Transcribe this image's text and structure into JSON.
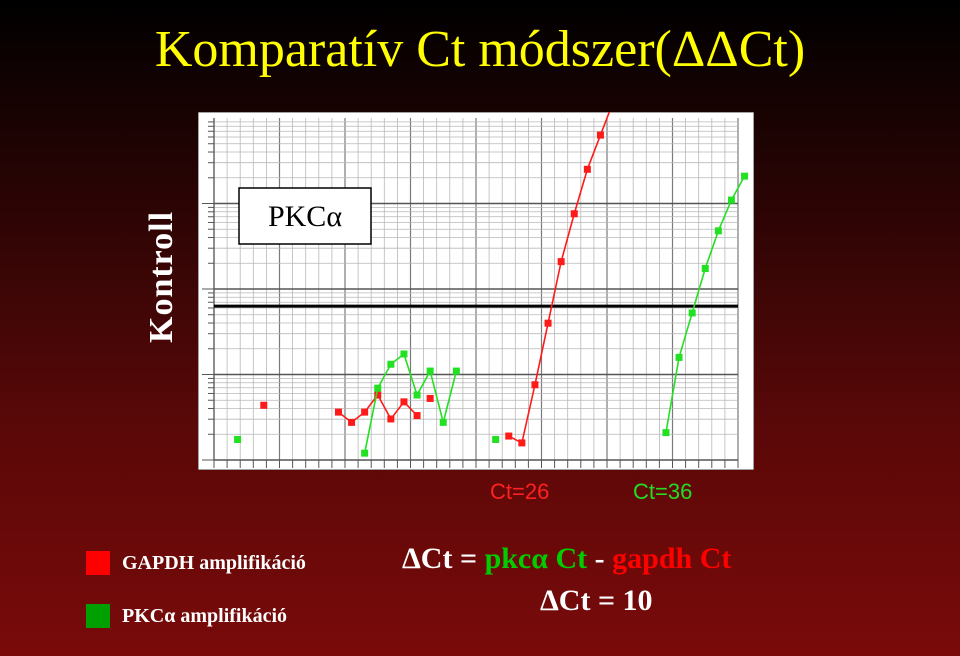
{
  "title": "Komparatív Ct módszer(ΔΔCt)",
  "side_label": "Kontroll",
  "chart_data": {
    "type": "scatter",
    "plot_label": "PKCα",
    "x_range": [
      0,
      40
    ],
    "y_range": [
      0,
      100
    ],
    "y_scale": "log",
    "grid": true,
    "threshold": 45,
    "series": [
      {
        "color": "#ff1a1a",
        "points": [
          [
            3.8,
            16
          ],
          [
            9.5,
            14
          ],
          [
            10.5,
            11
          ],
          [
            11.5,
            14
          ],
          [
            12.5,
            19
          ],
          [
            13.5,
            12
          ],
          [
            14.5,
            17
          ],
          [
            15.5,
            13
          ],
          [
            16.5,
            18
          ],
          [
            22.5,
            7
          ],
          [
            23.5,
            5
          ],
          [
            24.5,
            22
          ],
          [
            25.5,
            40
          ],
          [
            26.5,
            58
          ],
          [
            27.5,
            72
          ],
          [
            28.5,
            85
          ],
          [
            29.5,
            95
          ],
          [
            30.5,
            105
          ],
          [
            31.5,
            115
          ],
          [
            32.5,
            125
          ],
          [
            33.5,
            133
          ],
          [
            34.5,
            141
          ],
          [
            35.5,
            149
          ],
          [
            36.5,
            156
          ],
          [
            37.5,
            160
          ],
          [
            38.5,
            163
          ],
          [
            39.5,
            166
          ],
          [
            40.5,
            168
          ]
        ],
        "segments": [
          [
            [
              9.5,
              14
            ],
            [
              10.5,
              11
            ],
            [
              11.5,
              14
            ],
            [
              12.5,
              19
            ],
            [
              13.5,
              12
            ],
            [
              14.5,
              17
            ],
            [
              15.5,
              13
            ]
          ],
          [
            [
              22.5,
              7
            ],
            [
              23.5,
              5
            ],
            [
              24.5,
              22
            ],
            [
              25.5,
              40
            ],
            [
              26.5,
              58
            ],
            [
              27.5,
              72
            ],
            [
              28.5,
              85
            ],
            [
              29.5,
              95
            ],
            [
              30.5,
              105
            ],
            [
              31.5,
              115
            ],
            [
              32.5,
              125
            ],
            [
              33.5,
              133
            ],
            [
              34.5,
              141
            ],
            [
              35.5,
              149
            ],
            [
              36.5,
              156
            ],
            [
              37.5,
              160
            ],
            [
              38.5,
              163
            ],
            [
              39.5,
              166
            ],
            [
              40.5,
              168
            ]
          ]
        ]
      },
      {
        "color": "#22e022",
        "points": [
          [
            1.8,
            6
          ],
          [
            11.5,
            2
          ],
          [
            12.5,
            21
          ],
          [
            13.5,
            28
          ],
          [
            14.5,
            31
          ],
          [
            15.5,
            19
          ],
          [
            16.5,
            26
          ],
          [
            17.5,
            11
          ],
          [
            18.5,
            26
          ],
          [
            21.5,
            6
          ],
          [
            34.5,
            8
          ],
          [
            35.5,
            30
          ],
          [
            36.5,
            43
          ],
          [
            37.5,
            56
          ],
          [
            38.5,
            67
          ],
          [
            39.5,
            76
          ],
          [
            40.5,
            83
          ]
        ],
        "segments": [
          [
            [
              11.5,
              2
            ],
            [
              12.5,
              21
            ],
            [
              13.5,
              28
            ],
            [
              14.5,
              31
            ],
            [
              15.5,
              19
            ],
            [
              16.5,
              26
            ],
            [
              17.5,
              11
            ],
            [
              18.5,
              26
            ]
          ],
          [
            [
              34.5,
              8
            ],
            [
              35.5,
              30
            ],
            [
              36.5,
              43
            ],
            [
              37.5,
              56
            ],
            [
              38.5,
              67
            ],
            [
              39.5,
              76
            ],
            [
              40.5,
              83
            ]
          ]
        ]
      }
    ]
  },
  "ct_gapdh": "Ct=26",
  "ct_pkc": "Ct=36",
  "legend": [
    {
      "label": "GAPDH amplifikáció",
      "color": "#ff0000"
    },
    {
      "label": "PKCα amplifikáció",
      "color": "#00a000"
    }
  ],
  "formula": {
    "prefix": "ΔCt = ",
    "pkc": "pkcα Ct",
    "minus": " - ",
    "gapdh": "gapdh Ct"
  },
  "result": "ΔCt = 10",
  "colors": {
    "title": "#ffff00",
    "gapdh": "#ff1a1a",
    "pkc": "#22e022",
    "formula_green": "#00cc00",
    "formula_red": "#ff0000"
  }
}
